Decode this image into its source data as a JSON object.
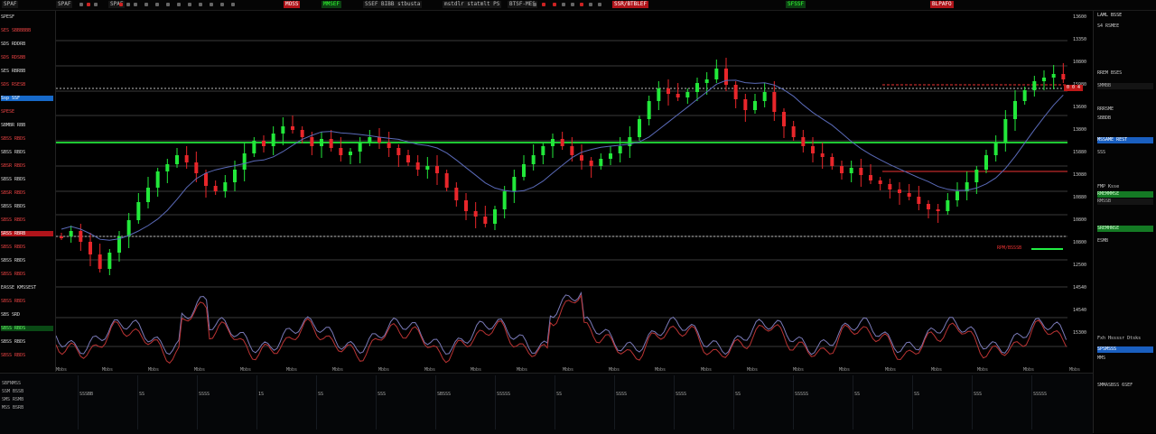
{
  "top_bar": {
    "items": [
      {
        "text": "SPAF",
        "style": "dark"
      },
      {
        "text": "SPAF",
        "style": "dark"
      },
      {
        "text": "SPAF",
        "style": "dark"
      },
      {
        "text": "MOSS",
        "style": "red"
      },
      {
        "text": "MMSEF",
        "style": "grn"
      },
      {
        "text": "SSEF BIBB stbusta",
        "style": "dark"
      },
      {
        "text": "mstdlr statmlt PS",
        "style": "dark"
      },
      {
        "text": "BTSF-MES",
        "style": "dark"
      },
      {
        "text": "SSR/BTBLEF",
        "style": "red"
      },
      {
        "text": "SFSSF",
        "style": "grn"
      },
      {
        "text": "BLPAFO",
        "style": "red"
      }
    ]
  },
  "left_panel": {
    "rows": [
      {
        "text": "SPESF",
        "style": ""
      },
      {
        "text": "SES SBBBBBB",
        "style": ""
      },
      {
        "text": "SDS RDDRB",
        "style": ""
      },
      {
        "text": "SDS RDSBB",
        "style": ""
      },
      {
        "text": "SES RBRBB",
        "style": ""
      },
      {
        "text": "SDS RSESB",
        "style": ""
      },
      {
        "text": "Ssp SSF",
        "style": "blue"
      },
      {
        "text": "SPESE",
        "style": ""
      },
      {
        "text": "SBMBR RBB",
        "style": ""
      },
      {
        "text": "SBSS RBDS",
        "style": ""
      },
      {
        "text": "SBSS RBDS",
        "style": ""
      },
      {
        "text": "SBSR RBDS",
        "style": ""
      },
      {
        "text": "SBSS RBDS",
        "style": ""
      },
      {
        "text": "SBSR RBDS",
        "style": ""
      },
      {
        "text": "SBSS RBDS",
        "style": ""
      },
      {
        "text": "SBSS RBDS",
        "style": ""
      },
      {
        "text": "SRSS RBRB",
        "style": "hl"
      },
      {
        "text": "SBSS RBDS",
        "style": ""
      },
      {
        "text": "SBSS RBDS",
        "style": ""
      },
      {
        "text": "SBSS RBDS",
        "style": ""
      },
      {
        "text": "EASSE KMSSEST",
        "style": ""
      },
      {
        "text": "SBSS RBDS",
        "style": ""
      },
      {
        "text": "SBS SRD",
        "style": ""
      },
      {
        "text": "SBSS RBDS",
        "style": "green"
      },
      {
        "text": "SBSS RBDS",
        "style": ""
      },
      {
        "text": "SBSS RBDS",
        "style": ""
      }
    ]
  },
  "price_axis": [
    "13600",
    "13350",
    "10800",
    "15980",
    "13600",
    "13800",
    "15880",
    "13080",
    "10880",
    "10800",
    "10800",
    "12500",
    "14540",
    "14540",
    "15300"
  ],
  "current_price_tag": "0 0 4",
  "time_axis": [
    "Mbbs",
    "Mbbs",
    "Mbbs",
    "Mbbs",
    "Mbbs",
    "Mbbs",
    "Mbbs",
    "Mbbs",
    "Mbbs",
    "Mbbs",
    "Mbbs",
    "Mbbs",
    "Mbbs",
    "Mbbs",
    "Mbbs",
    "Mbbs",
    "Mbbs",
    "Mbbs",
    "Mbbs",
    "Mbbs",
    "Mbbs",
    "Mbbs",
    "Mbbs"
  ],
  "annotation": "RPM/BSSSB",
  "right_panel": {
    "title": "LAML BSSE",
    "rows": [
      {
        "text": "S4 RSMEE",
        "style": ""
      },
      {
        "text": "RREM BSES",
        "style": ""
      },
      {
        "text": "SMMBB",
        "style": "dark"
      },
      {
        "text": "RRRSME",
        "style": ""
      },
      {
        "text": "SBBDB",
        "style": ""
      },
      {
        "text": "MSSAME REST",
        "style": "blue"
      },
      {
        "text": "SSS",
        "style": ""
      },
      {
        "text": "FMP Ksse",
        "style": ""
      },
      {
        "text": "RMEMMMSE",
        "style": "green"
      },
      {
        "text": "RMSSB",
        "style": "dark"
      },
      {
        "text": "SREMHNSE",
        "style": "green"
      },
      {
        "text": "ESMB",
        "style": ""
      },
      {
        "text": "Fxh Hssssr Dtsks",
        "style": ""
      },
      {
        "text": "SPSMSSS",
        "style": "blue"
      },
      {
        "text": "MMS",
        "style": ""
      },
      {
        "text": "SMMASBSS 6SEF",
        "style": ""
      }
    ]
  },
  "bottom_panel": {
    "labels": [
      "SBFNMSS",
      "SSM BSSB",
      "SMS RSMB",
      "MSS BSRB"
    ],
    "time_labels": [
      "SSSBB",
      "SS",
      "SSSS",
      "1S",
      "SS",
      "SSS",
      "SBSSS",
      "SSSSS",
      "SS",
      "SSSS",
      "SSSS",
      "SS",
      "SSSSS",
      "SS",
      "SS",
      "SSS",
      "SSSSS"
    ]
  },
  "colors": {
    "up": "#22e83a",
    "down": "#e8262a",
    "ma": "#5a6ab8",
    "grid": "#3a3a3a",
    "hline_green": "#1ec832"
  }
}
